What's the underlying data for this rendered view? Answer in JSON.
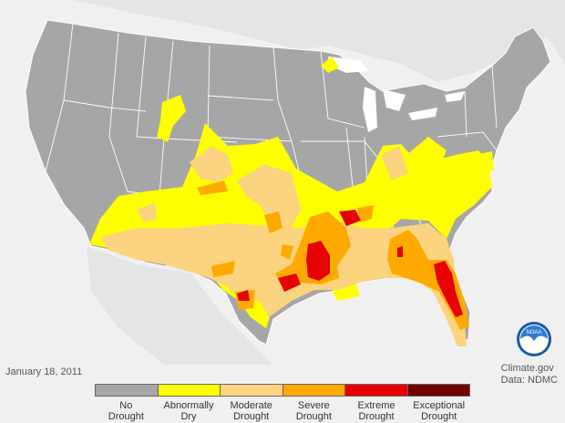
{
  "map": {
    "date": "January 18, 2011",
    "credit_line1": "Climate.gov",
    "credit_line2": "Data: NDMC",
    "logo_text": "NOAA",
    "colors": {
      "background": "#f0f0f0",
      "country": "#a6a6a6",
      "neighbor": "#e4e4e4",
      "water": "#ffffff",
      "border": "#ffffff"
    }
  },
  "legend": {
    "categories": [
      {
        "line1": "No",
        "line2": "Drought",
        "color": "#a6a6a6"
      },
      {
        "line1": "Abnormally",
        "line2": "Dry",
        "color": "#ffff00"
      },
      {
        "line1": "Moderate",
        "line2": "Drought",
        "color": "#fcd37f"
      },
      {
        "line1": "Severe",
        "line2": "Drought",
        "color": "#ffaa00"
      },
      {
        "line1": "Extreme",
        "line2": "Drought",
        "color": "#e60000"
      },
      {
        "line1": "Exceptional",
        "line2": "Drought",
        "color": "#730000"
      }
    ]
  }
}
